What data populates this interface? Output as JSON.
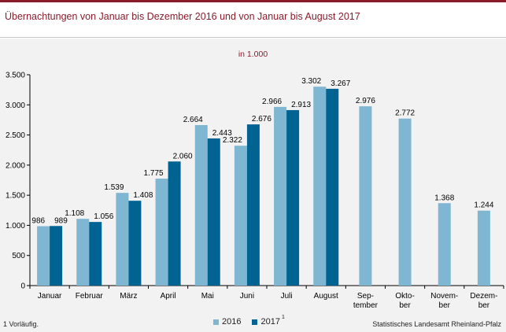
{
  "title": "Übernachtungen von Januar bis Dezember 2016 und von Januar bis August 2017",
  "unit_label": "in 1.000",
  "footnote": "1 Vorläufig.",
  "source": "Statistisches Landesamt Rheinland-Pfalz",
  "colors": {
    "accent": "#8b1c2c",
    "series_2016": "#7fb6d2",
    "series_2017": "#006392",
    "panel": "#f2f2f2"
  },
  "legend": [
    {
      "label": "2016",
      "color": "#7fb6d2",
      "sup": ""
    },
    {
      "label": "2017",
      "color": "#006392",
      "sup": "1"
    }
  ],
  "chart_data": {
    "type": "bar",
    "title": "Übernachtungen von Januar bis Dezember 2016 und von Januar bis August 2017",
    "ylabel": "in 1.000",
    "ylim": [
      0,
      3500
    ],
    "yticks": [
      0,
      500,
      1000,
      1500,
      2000,
      2500,
      3000,
      3500
    ],
    "ytick_labels": [
      "0",
      "500",
      "1.000",
      "1.500",
      "2.000",
      "2.500",
      "3.000",
      "3.500"
    ],
    "grid": false,
    "legend_position": "bottom",
    "categories": [
      [
        "Januar"
      ],
      [
        "Februar"
      ],
      [
        "März"
      ],
      [
        "April"
      ],
      [
        "Mai"
      ],
      [
        "Juni"
      ],
      [
        "Juli"
      ],
      [
        "August"
      ],
      [
        "Sep-",
        "tember"
      ],
      [
        "Okto-",
        "ber"
      ],
      [
        "Novem-",
        "ber"
      ],
      [
        "Dezem-",
        "ber"
      ]
    ],
    "series": [
      {
        "name": "2016",
        "values": [
          986,
          1108,
          1539,
          1775,
          2664,
          2322,
          2966,
          3302,
          2976,
          2772,
          1368,
          1244
        ],
        "labels": [
          "986",
          "1.108",
          "1.539",
          "1.775",
          "2.664",
          "2.322",
          "2.966",
          "3.302",
          "2.976",
          "2.772",
          "1.368",
          "1.244"
        ]
      },
      {
        "name": "2017",
        "values": [
          989,
          1056,
          1408,
          2060,
          2443,
          2676,
          2913,
          3267,
          null,
          null,
          null,
          null
        ],
        "labels": [
          "989",
          "1.056",
          "1.408",
          "2.060",
          "2.443",
          "2.676",
          "2.913",
          "3.267",
          "",
          "",
          "",
          ""
        ]
      }
    ]
  }
}
